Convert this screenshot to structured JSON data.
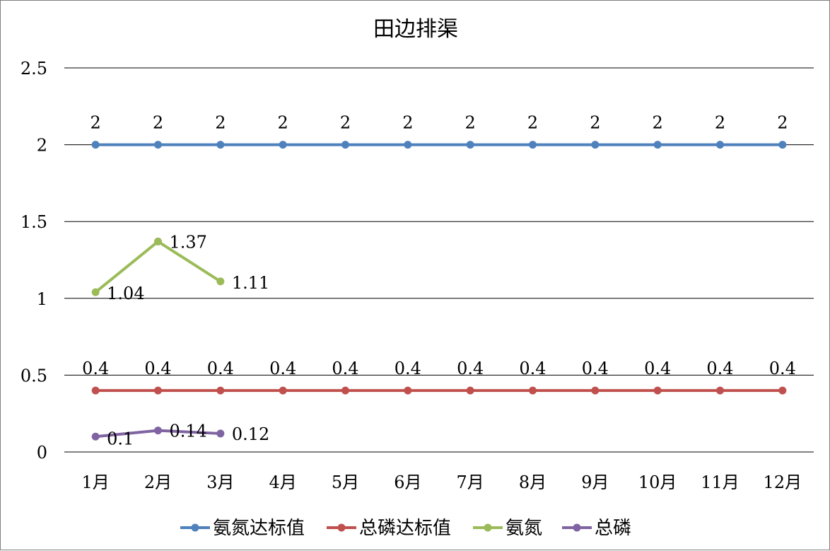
{
  "chart_data": {
    "type": "line",
    "title": "田边排渠",
    "xlabel": "",
    "ylabel": "",
    "ylim": [
      0,
      2.5
    ],
    "yticks": [
      "0",
      "0.5",
      "1",
      "1.5",
      "2",
      "2.5"
    ],
    "ytick_values": [
      0,
      0.5,
      1,
      1.5,
      2,
      2.5
    ],
    "categories": [
      "1月",
      "2月",
      "3月",
      "4月",
      "5月",
      "6月",
      "7月",
      "8月",
      "9月",
      "10月",
      "11月",
      "12月"
    ],
    "grid": true,
    "legend_position": "bottom",
    "series": [
      {
        "name": "氨氮达标值",
        "color": "#4f81bd",
        "values": [
          2,
          2,
          2,
          2,
          2,
          2,
          2,
          2,
          2,
          2,
          2,
          2
        ],
        "labels": [
          "2",
          "2",
          "2",
          "2",
          "2",
          "2",
          "2",
          "2",
          "2",
          "2",
          "2",
          "2"
        ],
        "label_position": "above"
      },
      {
        "name": "总磷达标值",
        "color": "#c0504d",
        "values": [
          0.4,
          0.4,
          0.4,
          0.4,
          0.4,
          0.4,
          0.4,
          0.4,
          0.4,
          0.4,
          0.4,
          0.4
        ],
        "labels": [
          "0.4",
          "0.4",
          "0.4",
          "0.4",
          "0.4",
          "0.4",
          "0.4",
          "0.4",
          "0.4",
          "0.4",
          "0.4",
          "0.4"
        ],
        "label_position": "above"
      },
      {
        "name": "氨氮",
        "color": "#9bbb59",
        "values": [
          1.04,
          1.37,
          1.11,
          null,
          null,
          null,
          null,
          null,
          null,
          null,
          null,
          null
        ],
        "labels": [
          "1.04",
          "1.37",
          "1.11"
        ],
        "label_position": "right"
      },
      {
        "name": "总磷",
        "color": "#8064a2",
        "values": [
          0.1,
          0.14,
          0.12,
          null,
          null,
          null,
          null,
          null,
          null,
          null,
          null,
          null
        ],
        "labels": [
          "0.1",
          "0.14",
          "0.12"
        ],
        "label_position": "right"
      }
    ]
  }
}
